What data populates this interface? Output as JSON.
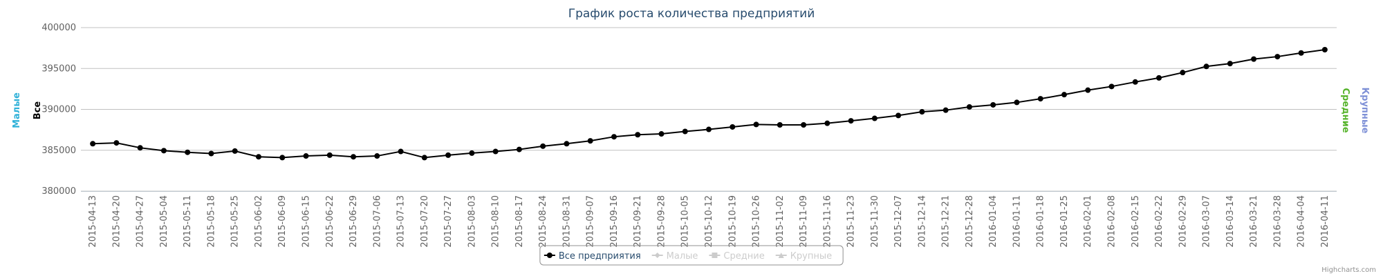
{
  "chart_data": {
    "type": "line",
    "title": "График роста количества предприятий",
    "categories": [
      "2015-04-13",
      "2015-04-20",
      "2015-04-27",
      "2015-05-04",
      "2015-05-11",
      "2015-05-18",
      "2015-05-25",
      "2015-06-02",
      "2015-06-09",
      "2015-06-15",
      "2015-06-22",
      "2015-06-29",
      "2015-07-06",
      "2015-07-13",
      "2015-07-20",
      "2015-07-27",
      "2015-08-03",
      "2015-08-10",
      "2015-08-17",
      "2015-08-24",
      "2015-08-31",
      "2015-09-07",
      "2015-09-16",
      "2015-09-21",
      "2015-09-28",
      "2015-10-05",
      "2015-10-12",
      "2015-10-19",
      "2015-10-26",
      "2015-11-02",
      "2015-11-09",
      "2015-11-16",
      "2015-11-23",
      "2015-11-30",
      "2015-12-07",
      "2015-12-14",
      "2015-12-21",
      "2015-12-28",
      "2016-01-04",
      "2016-01-11",
      "2016-01-18",
      "2016-01-25",
      "2016-02-01",
      "2016-02-08",
      "2016-02-15",
      "2016-02-22",
      "2016-02-29",
      "2016-03-07",
      "2016-03-14",
      "2016-03-21",
      "2016-03-28",
      "2016-04-04",
      "2016-04-11"
    ],
    "series": [
      {
        "name": "Все предприятия",
        "color": "#000000",
        "marker": "circle",
        "visible": true,
        "values": [
          385800,
          385900,
          385300,
          384950,
          384750,
          384600,
          384900,
          384200,
          384100,
          384300,
          384400,
          384200,
          384300,
          384850,
          384100,
          384400,
          384650,
          384850,
          385100,
          385500,
          385800,
          386150,
          386650,
          386900,
          387000,
          387300,
          387550,
          387850,
          388150,
          388100,
          388100,
          388300,
          388600,
          388900,
          389250,
          389700,
          389900,
          390300,
          390550,
          390850,
          391300,
          391800,
          392350,
          392800,
          393350,
          393850,
          394500,
          395250,
          395600,
          396150,
          396450,
          396900,
          397300
        ]
      },
      {
        "name": "Малые",
        "color": "#2fb1d8",
        "marker": "diamond",
        "visible": false
      },
      {
        "name": "Средние",
        "color": "#55b32a",
        "marker": "square",
        "visible": false
      },
      {
        "name": "Крупные",
        "color": "#7d8fd6",
        "marker": "triangle",
        "visible": false
      }
    ],
    "left_axis_titles": [
      {
        "text": "Малые",
        "color": "#2fb1d8"
      },
      {
        "text": "Все",
        "color": "#000000"
      }
    ],
    "right_axis_titles": [
      {
        "text": "Средние",
        "color": "#55b32a"
      },
      {
        "text": "Крупные",
        "color": "#7d8fd6"
      }
    ],
    "ylim": [
      380000,
      400000
    ],
    "yticks": [
      380000,
      385000,
      390000,
      395000,
      400000
    ],
    "grid": true,
    "hidden_color": "#cccccc",
    "credits": "Highcharts.com"
  }
}
